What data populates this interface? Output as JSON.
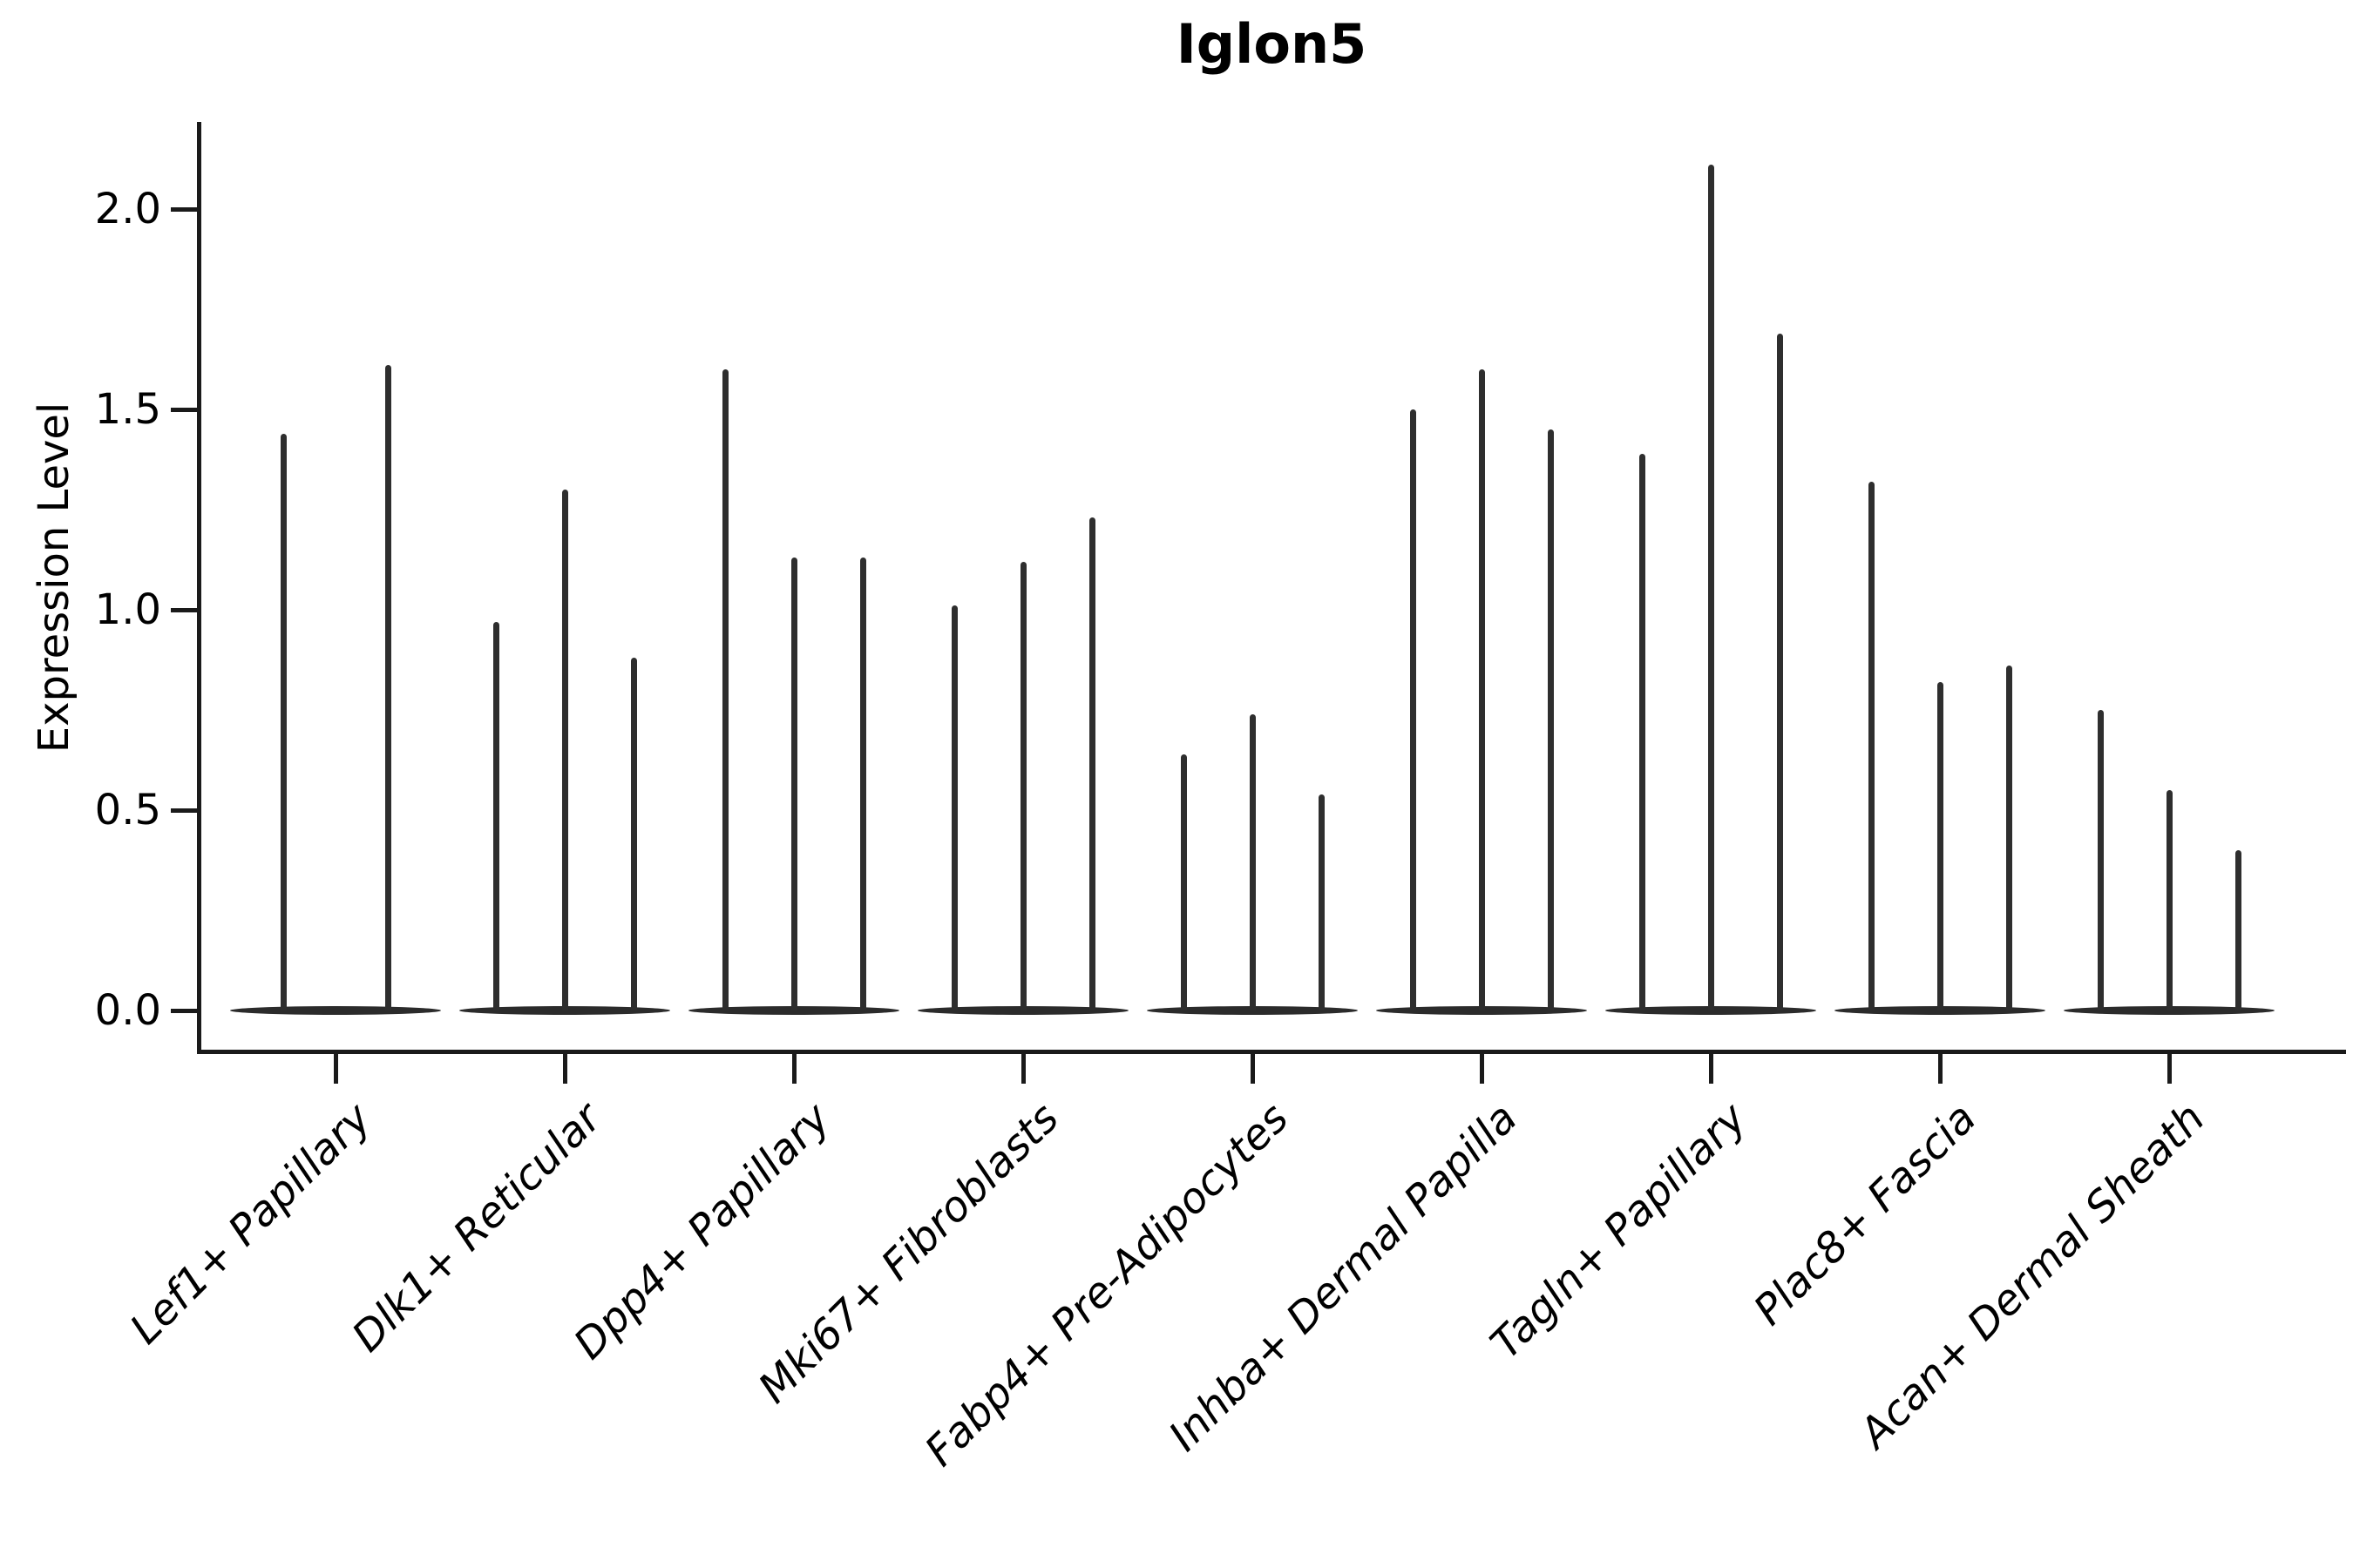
{
  "title": "Iglon5",
  "y_axis": {
    "label": "Expression Level",
    "tick_labels": [
      "0.0",
      "0.5",
      "1.0",
      "1.5",
      "2.0"
    ],
    "tick_values": [
      0,
      0.5,
      1.0,
      1.5,
      2.0
    ]
  },
  "colors": {
    "ink": "#000000",
    "axis": "#1a1a1a",
    "violin": "#2e2e2e"
  },
  "chart_data": {
    "type": "violin",
    "title": "Iglon5",
    "xlabel": "",
    "ylabel": "Expression Level",
    "ylim": [
      -0.09,
      2.21
    ],
    "yticks": [
      0,
      0.5,
      1.0,
      1.5,
      2.0
    ],
    "grid": false,
    "legend": "none",
    "categories": [
      "Lef1+ Papillary",
      "Dlk1+ Reticular",
      "Dpp4+ Papillary",
      "Mki67+ Fibroblasts",
      "Fabp4+ Pre-Adipocytes",
      "Inhba+ Dermal Papilla",
      "Tagln+ Papillary",
      "Plac8+ Fascia",
      "Acan+ Dermal Sheath"
    ],
    "description": "Thin spike-shaped violins (density concentrated at 0, thin tail to max) grouped per cell type; values are spike maxima (Expression Level).",
    "groups": [
      {
        "category": "Lef1+ Papillary",
        "spike_maxima": [
          1.44,
          1.61
        ]
      },
      {
        "category": "Dlk1+ Reticular",
        "spike_maxima": [
          0.97,
          1.3,
          0.88
        ]
      },
      {
        "category": "Dpp4+ Papillary",
        "spike_maxima": [
          1.6,
          1.13,
          1.13
        ]
      },
      {
        "category": "Mki67+ Fibroblasts",
        "spike_maxima": [
          1.01,
          1.12,
          1.23
        ]
      },
      {
        "category": "Fabp4+ Pre-Adipocytes",
        "spike_maxima": [
          0.64,
          0.74,
          0.54
        ]
      },
      {
        "category": "Inhba+ Dermal Papilla",
        "spike_maxima": [
          1.5,
          1.6,
          1.45
        ]
      },
      {
        "category": "Tagln+ Papillary",
        "spike_maxima": [
          1.39,
          2.11,
          1.69
        ]
      },
      {
        "category": "Plac8+ Fascia",
        "spike_maxima": [
          1.32,
          0.82,
          0.86
        ]
      },
      {
        "category": "Acan+ Dermal Sheath",
        "spike_maxima": [
          0.75,
          0.55,
          0.4
        ]
      }
    ]
  }
}
